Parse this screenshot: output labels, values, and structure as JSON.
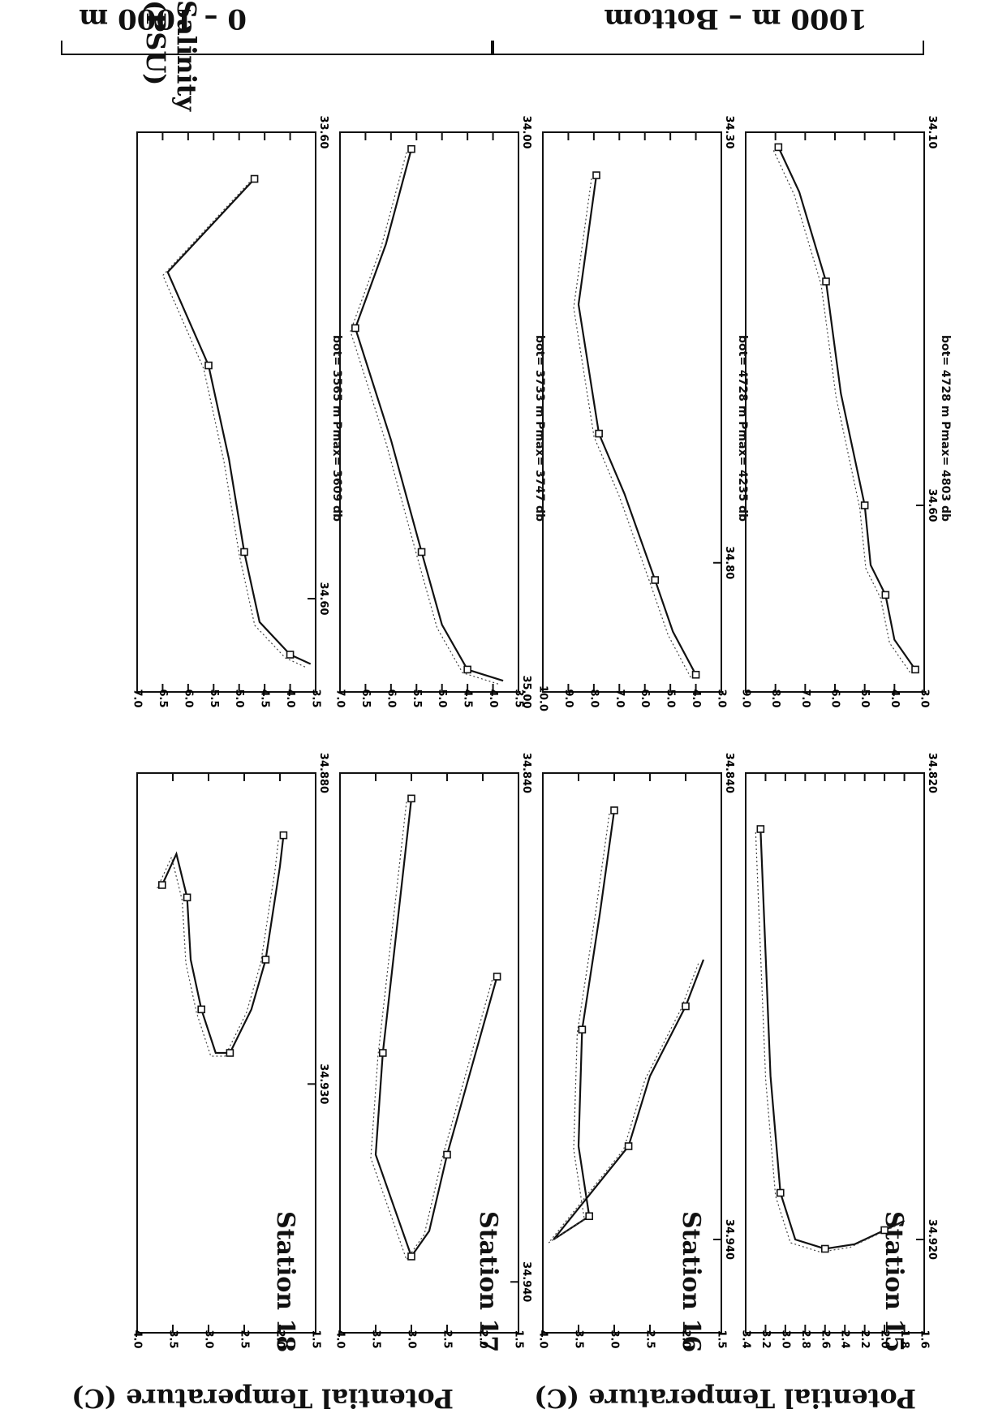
{
  "figure": {
    "top_label": "0 – 1000 m",
    "bottom_label": "1000 m – Bottom",
    "x_label": "Salinity (PSU)",
    "y_label": "Potential Temperature (C)"
  },
  "stations": [
    {
      "name": "Station 15",
      "bot_text": "bot= 4728 m  Pmax= 4803 db"
    },
    {
      "name": "Station 16",
      "bot_text": "bot= 4728 m  Pmax= 4235 db"
    },
    {
      "name": "Station 17",
      "bot_text": "bot= 3733 m  Pmax= 3747 db"
    },
    {
      "name": "Station 18",
      "bot_text": "bot= 3565 m  Pmax= 3609 db"
    }
  ],
  "chart_data": [
    {
      "type": "line",
      "title": "Station 15 0-1000 m",
      "xlim": [
        34.1,
        34.85
      ],
      "ylim": [
        3.0,
        9.0
      ],
      "xticks": [
        "34.10",
        "34.60"
      ],
      "yticks": [
        "3.0",
        "4.0",
        "5.0",
        "6.0",
        "7.0",
        "8.0",
        "9.0"
      ],
      "series": [
        {
          "values": [
            [
              34.12,
              7.9
            ],
            [
              34.18,
              7.2
            ],
            [
              34.3,
              6.3
            ],
            [
              34.45,
              5.8
            ],
            [
              34.6,
              5.0
            ],
            [
              34.68,
              4.8
            ],
            [
              34.72,
              4.3
            ],
            [
              34.78,
              4.0
            ],
            [
              34.82,
              3.3
            ]
          ]
        }
      ]
    },
    {
      "type": "line",
      "title": "Station 16 0-1000 m",
      "xlim": [
        34.3,
        34.95
      ],
      "ylim": [
        3.0,
        10.0
      ],
      "xticks": [
        "34.30",
        "34.80"
      ],
      "yticks": [
        "3.0",
        "4.0",
        "5.0",
        "6.0",
        "7.0",
        "8.0",
        "9.0",
        "10.0"
      ],
      "series": [
        {
          "values": [
            [
              34.35,
              7.9
            ],
            [
              34.5,
              8.6
            ],
            [
              34.65,
              7.8
            ],
            [
              34.72,
              6.8
            ],
            [
              34.82,
              5.6
            ],
            [
              34.88,
              4.9
            ],
            [
              34.93,
              4.0
            ]
          ]
        }
      ]
    },
    {
      "type": "line",
      "title": "Station 17 0-1000 m",
      "xlim": [
        34.0,
        35.0
      ],
      "ylim": [
        3.5,
        7.0
      ],
      "xticks": [
        "34.00",
        "35.00"
      ],
      "yticks": [
        "3.5",
        "4.0",
        "4.5",
        "5.0",
        "5.5",
        "6.0",
        "6.5",
        "7.0"
      ],
      "series": [
        {
          "values": [
            [
              34.03,
              5.6
            ],
            [
              34.2,
              6.1
            ],
            [
              34.35,
              6.7
            ],
            [
              34.55,
              6.0
            ],
            [
              34.75,
              5.4
            ],
            [
              34.88,
              5.0
            ],
            [
              34.96,
              4.5
            ],
            [
              34.98,
              3.8
            ]
          ]
        }
      ]
    },
    {
      "type": "line",
      "title": "Station 18 0-1000 m",
      "xlim": [
        33.6,
        34.8
      ],
      "ylim": [
        3.5,
        7.0
      ],
      "xticks": [
        "33.60",
        "34.60"
      ],
      "yticks": [
        "3.5",
        "4.0",
        "4.5",
        "5.0",
        "5.5",
        "6.0",
        "6.5",
        "7.0"
      ],
      "series": [
        {
          "values": [
            [
              33.7,
              4.7
            ],
            [
              33.9,
              6.4
            ],
            [
              34.1,
              5.6
            ],
            [
              34.3,
              5.2
            ],
            [
              34.5,
              4.9
            ],
            [
              34.65,
              4.6
            ],
            [
              34.72,
              4.0
            ],
            [
              34.74,
              3.6
            ]
          ]
        }
      ]
    },
    {
      "type": "line",
      "title": "Station 15 1000 m-Bottom",
      "xlim": [
        34.82,
        34.94
      ],
      "ylim": [
        1.6,
        3.4
      ],
      "xticks": [
        "34.820",
        "34.920"
      ],
      "yticks": [
        "1.6",
        "1.8",
        "2.0",
        "2.2",
        "2.4",
        "2.6",
        "2.8",
        "3.0",
        "3.2",
        "3.4"
      ],
      "series": [
        {
          "values": [
            [
              34.832,
              3.25
            ],
            [
              34.885,
              3.15
            ],
            [
              34.91,
              3.05
            ],
            [
              34.92,
              2.9
            ],
            [
              34.922,
              2.6
            ],
            [
              34.921,
              2.3
            ],
            [
              34.918,
              2.0
            ],
            [
              34.916,
              1.8
            ]
          ]
        }
      ]
    },
    {
      "type": "line",
      "title": "Station 16 1000 m-Bottom",
      "xlim": [
        34.84,
        34.96
      ],
      "ylim": [
        1.5,
        4.0
      ],
      "xticks": [
        "34.840",
        "34.940"
      ],
      "yticks": [
        "1.5",
        "2.0",
        "2.5",
        "3.0",
        "3.5",
        "4.0"
      ],
      "series": [
        {
          "values": [
            [
              34.848,
              3.0
            ],
            [
              34.87,
              3.2
            ],
            [
              34.895,
              3.45
            ],
            [
              34.92,
              3.5
            ],
            [
              34.935,
              3.35
            ],
            [
              34.94,
              3.85
            ],
            [
              34.92,
              2.8
            ],
            [
              34.905,
              2.5
            ],
            [
              34.89,
              2.0
            ],
            [
              34.88,
              1.75
            ]
          ]
        }
      ]
    },
    {
      "type": "line",
      "title": "Station 17 1000 m-Bottom",
      "xlim": [
        34.84,
        34.95
      ],
      "ylim": [
        1.5,
        4.0
      ],
      "xticks": [
        "34.840",
        "34.940"
      ],
      "yticks": [
        "1.5",
        "2.0",
        "2.5",
        "3.0",
        "3.5",
        "4.0"
      ],
      "series": [
        {
          "values": [
            [
              34.845,
              3.0
            ],
            [
              34.87,
              3.2
            ],
            [
              34.895,
              3.4
            ],
            [
              34.915,
              3.5
            ],
            [
              34.935,
              3.0
            ],
            [
              34.93,
              2.75
            ],
            [
              34.915,
              2.5
            ],
            [
              34.895,
              2.1
            ],
            [
              34.88,
              1.8
            ]
          ]
        }
      ]
    },
    {
      "type": "line",
      "title": "Station 18 1000 m-Bottom",
      "xlim": [
        34.88,
        34.97
      ],
      "ylim": [
        1.5,
        4.0
      ],
      "xticks": [
        "34.880",
        "34.930"
      ],
      "yticks": [
        "1.5",
        "2.0",
        "2.5",
        "3.0",
        "3.5",
        "4.0"
      ],
      "series": [
        {
          "values": [
            [
              34.898,
              3.65
            ],
            [
              34.893,
              3.45
            ],
            [
              34.9,
              3.3
            ],
            [
              34.91,
              3.25
            ],
            [
              34.918,
              3.1
            ],
            [
              34.925,
              2.9
            ],
            [
              34.925,
              2.7
            ],
            [
              34.918,
              2.4
            ],
            [
              34.91,
              2.2
            ],
            [
              34.895,
              2.0
            ],
            [
              34.89,
              1.95
            ]
          ]
        }
      ]
    }
  ]
}
